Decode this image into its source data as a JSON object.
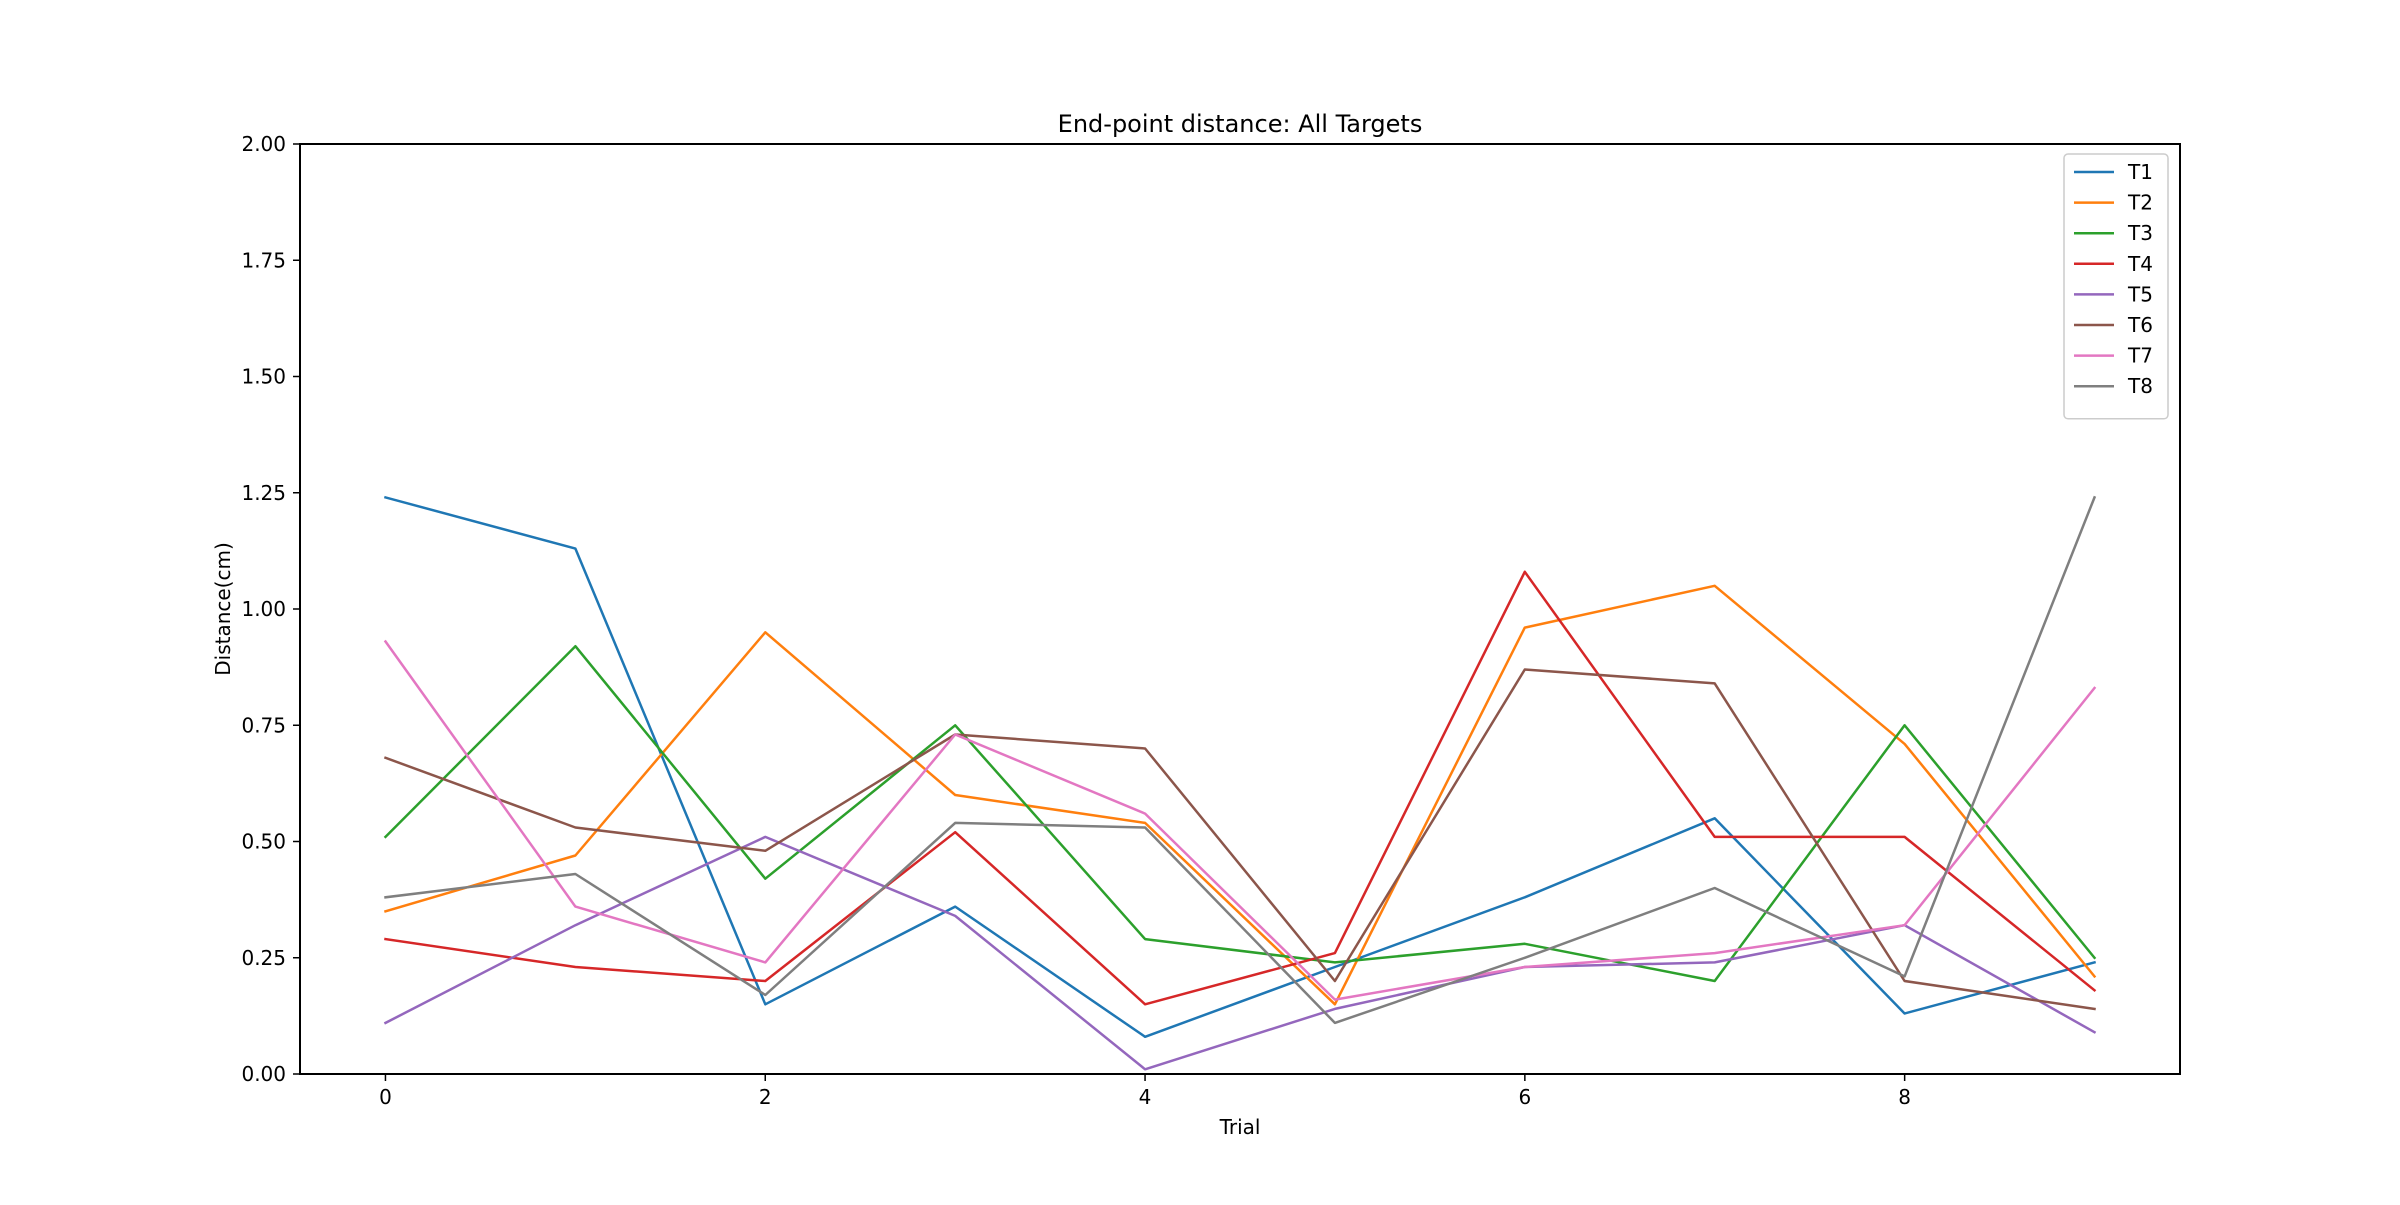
{
  "chart_data": {
    "type": "line",
    "title": "End-point distance: All Targets",
    "xlabel": "Trial",
    "ylabel": "Distance(cm)",
    "xlim": [
      -0.45,
      9.45
    ],
    "ylim": [
      0,
      2
    ],
    "x_ticks": [
      "0",
      "2",
      "4",
      "6",
      "8"
    ],
    "y_ticks": [
      "0.00",
      "0.25",
      "0.50",
      "0.75",
      "1.00",
      "1.25",
      "1.50",
      "1.75",
      "2.00"
    ],
    "grid": false,
    "legend_position": "top-right",
    "x": [
      0,
      1,
      2,
      3,
      4,
      5,
      6,
      7,
      8,
      9
    ],
    "series": [
      {
        "name": "T1",
        "color": "#1f77b4",
        "values": [
          1.24,
          1.13,
          0.15,
          0.36,
          0.08,
          0.23,
          0.38,
          0.55,
          0.13,
          0.24
        ]
      },
      {
        "name": "T2",
        "color": "#ff7f0e",
        "values": [
          0.35,
          0.47,
          0.95,
          0.6,
          0.54,
          0.15,
          0.96,
          1.05,
          0.71,
          0.21
        ]
      },
      {
        "name": "T3",
        "color": "#2ca02c",
        "values": [
          0.51,
          0.92,
          0.42,
          0.75,
          0.29,
          0.24,
          0.28,
          0.2,
          0.75,
          0.25
        ]
      },
      {
        "name": "T4",
        "color": "#d62728",
        "values": [
          0.29,
          0.23,
          0.2,
          0.52,
          0.15,
          0.26,
          1.08,
          0.51,
          0.51,
          0.18
        ]
      },
      {
        "name": "T5",
        "color": "#9467bd",
        "values": [
          0.11,
          0.32,
          0.51,
          0.34,
          0.01,
          0.14,
          0.23,
          0.24,
          0.32,
          0.09
        ]
      },
      {
        "name": "T6",
        "color": "#8c564b",
        "values": [
          0.68,
          0.53,
          0.48,
          0.73,
          0.7,
          0.2,
          0.87,
          0.84,
          0.2,
          0.14
        ]
      },
      {
        "name": "T7",
        "color": "#e377c2",
        "values": [
          0.93,
          0.36,
          0.24,
          0.73,
          0.56,
          0.16,
          0.23,
          0.26,
          0.32,
          0.83
        ]
      },
      {
        "name": "T8",
        "color": "#7f7f7f",
        "values": [
          0.38,
          0.43,
          0.17,
          0.54,
          0.53,
          0.11,
          0.25,
          0.4,
          0.21,
          1.24
        ]
      }
    ]
  }
}
